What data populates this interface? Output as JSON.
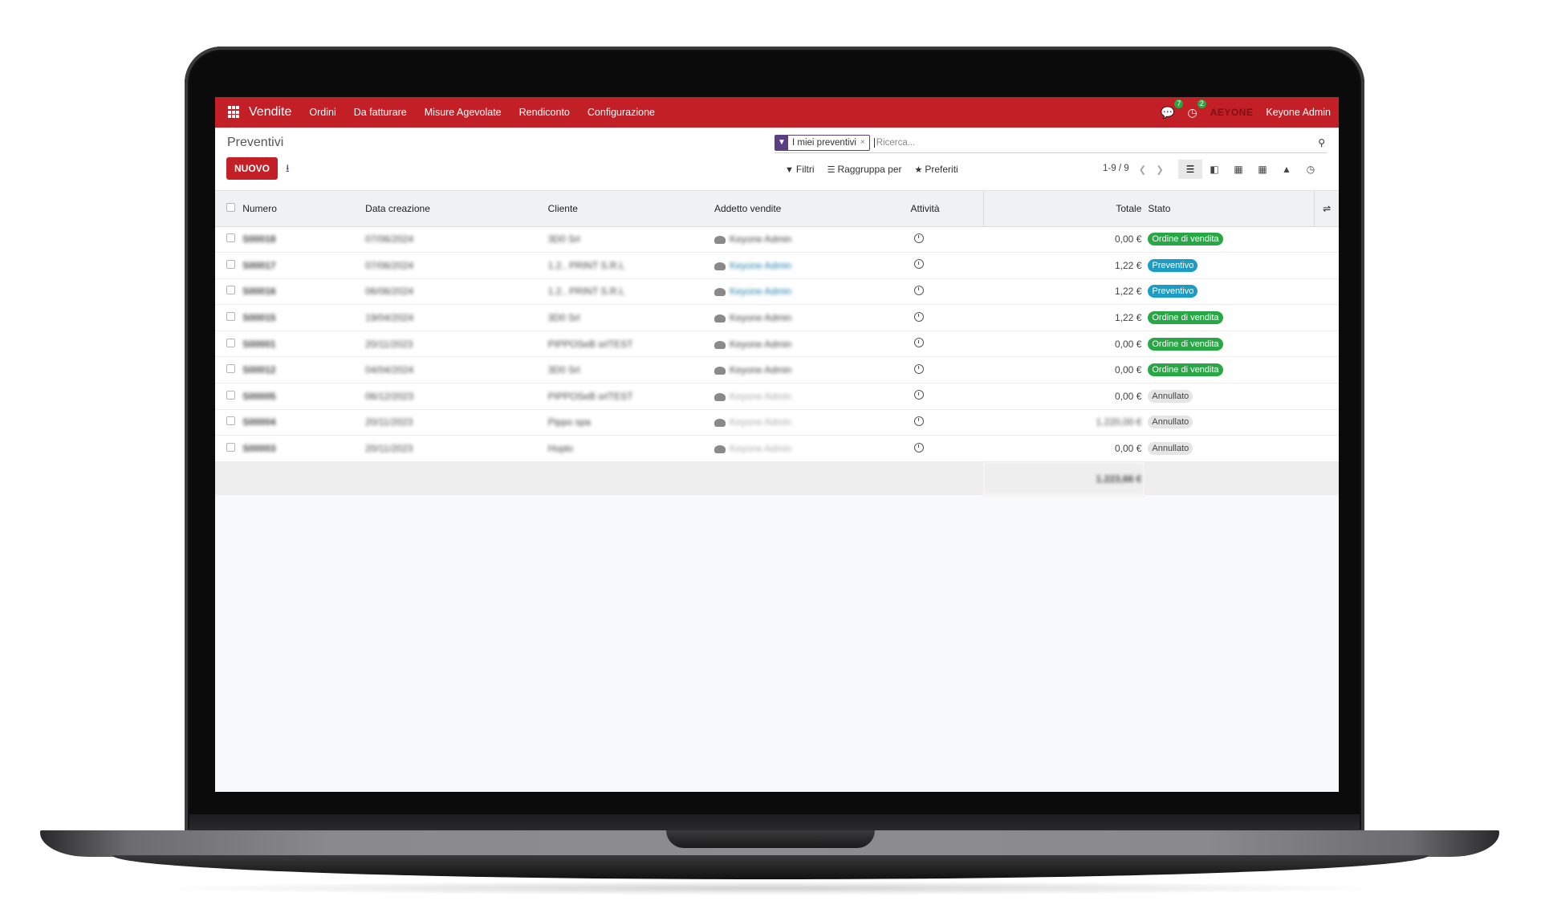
{
  "navbar": {
    "app_name": "Vendite",
    "menu": [
      "Ordini",
      "Da fatturare",
      "Misure Agevolate",
      "Rendiconto",
      "Configurazione"
    ],
    "messages_count": "7",
    "activities_count": "2",
    "brand": "AEYONE",
    "user": "Keyone Admin",
    "accent_color": "#c21f26"
  },
  "control_panel": {
    "title": "Preventivi",
    "new_button": "NUOVO",
    "facet_label": "I miei preventivi",
    "facet_close": "×",
    "search_placeholder": "Ricerca...",
    "filters_label": "Filtri",
    "group_by_label": "Raggruppa per",
    "favorites_label": "Preferiti",
    "pager": "1-9 / 9"
  },
  "table": {
    "headers": {
      "number": "Numero",
      "date": "Data creazione",
      "customer": "Cliente",
      "salesperson": "Addetto vendite",
      "activity": "Attività",
      "total": "Totale",
      "status": "Stato"
    },
    "rows": [
      {
        "number": "S00018",
        "date": "07/06/2024",
        "customer": "3D0 Srl",
        "salesperson": "Keyone Admin",
        "total": "0,00 €",
        "status": "Ordine di vendita",
        "status_type": "green",
        "style": ""
      },
      {
        "number": "S00017",
        "date": "07/06/2024",
        "customer": "1.2.. PRINT S.R.L",
        "salesperson": "Keyone Admin",
        "total": "1,22 €",
        "status": "Preventivo",
        "status_type": "teal",
        "style": "blue"
      },
      {
        "number": "S00016",
        "date": "06/06/2024",
        "customer": "1.2.. PRINT S.R.L",
        "salesperson": "Keyone Admin",
        "total": "1,22 €",
        "status": "Preventivo",
        "status_type": "teal",
        "style": "blue"
      },
      {
        "number": "S00015",
        "date": "19/04/2024",
        "customer": "3D0 Srl",
        "salesperson": "Keyone Admin",
        "total": "1,22 €",
        "status": "Ordine di vendita",
        "status_type": "green",
        "style": ""
      },
      {
        "number": "S00001",
        "date": "20/11/2023",
        "customer": "PIPPOSeB srlTEST",
        "salesperson": "Keyone Admin",
        "total": "0,00 €",
        "status": "Ordine di vendita",
        "status_type": "green",
        "style": ""
      },
      {
        "number": "S00012",
        "date": "04/04/2024",
        "customer": "3D0 Srl",
        "salesperson": "Keyone Admin",
        "total": "0,00 €",
        "status": "Ordine di vendita",
        "status_type": "green",
        "style": ""
      },
      {
        "number": "S00005",
        "date": "06/12/2023",
        "customer": "PIPPOSeB srlTEST",
        "salesperson": "Keyone Admin",
        "total": "0,00 €",
        "status": "Annullato",
        "status_type": "gray",
        "style": "faded"
      },
      {
        "number": "S00004",
        "date": "20/11/2023",
        "customer": "Pippo spa",
        "salesperson": "Keyone Admin",
        "total": "1.220,00 €",
        "status": "Annullato",
        "status_type": "gray",
        "style": "faded"
      },
      {
        "number": "S00003",
        "date": "20/11/2023",
        "customer": "Hoplo",
        "salesperson": "Keyone Admin",
        "total": "0,00 €",
        "status": "Annullato",
        "status_type": "gray",
        "style": "faded"
      }
    ],
    "footer_total": "1.223,66 €"
  }
}
